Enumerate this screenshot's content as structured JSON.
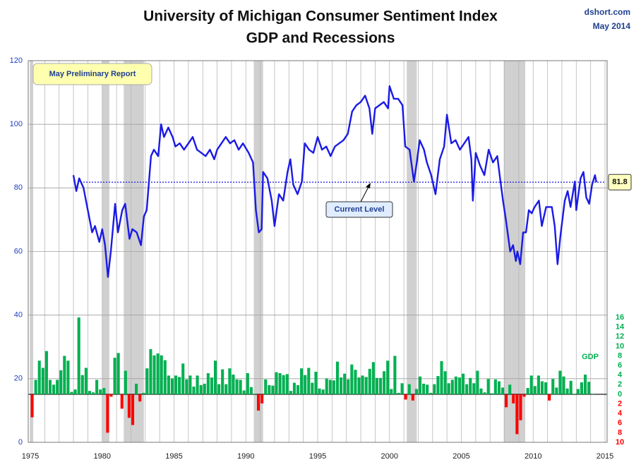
{
  "chart_data": [
    {
      "type": "line",
      "title": "University of Michigan Consumer Sentiment Index",
      "subtitle": "GDP and Recessions",
      "source": "dshort.com",
      "date": "May 2014",
      "report_label": "May Preliminary Report",
      "color": "#1a1ae6",
      "xlim": [
        1975,
        2015
      ],
      "xticks": [
        1975,
        1980,
        1985,
        1990,
        1995,
        2000,
        2005,
        2010,
        2015
      ],
      "xminorticks": [
        1976,
        1977,
        1978,
        1979,
        1981,
        1982,
        1983,
        1984,
        1986,
        1987,
        1988,
        1989,
        1991,
        1992,
        1993,
        1994,
        1996,
        1997,
        1998,
        1999,
        2001,
        2002,
        2003,
        2004,
        2006,
        2007,
        2008,
        2009,
        2011,
        2012,
        2013,
        2014
      ],
      "ylim": [
        0,
        120
      ],
      "yticks": [
        0,
        20,
        40,
        60,
        80,
        100,
        120
      ],
      "grid": true,
      "recessions": [
        [
          1975,
          1975.2
        ],
        [
          1980,
          1980.5
        ],
        [
          1981.5,
          1982.9
        ],
        [
          1990.55,
          1991.2
        ],
        [
          2001.2,
          2001.9
        ],
        [
          2007.95,
          2009.45
        ]
      ],
      "current_level": {
        "label": "Current Level",
        "value": 81.8
      },
      "x": [
        1978.0,
        1978.2,
        1978.4,
        1978.7,
        1979.0,
        1979.3,
        1979.5,
        1979.8,
        1980.0,
        1980.2,
        1980.4,
        1980.6,
        1980.9,
        1981.1,
        1981.4,
        1981.6,
        1981.9,
        1982.1,
        1982.4,
        1982.7,
        1982.9,
        1983.1,
        1983.4,
        1983.6,
        1983.9,
        1984.1,
        1984.3,
        1984.6,
        1984.9,
        1985.1,
        1985.4,
        1985.7,
        1986.0,
        1986.3,
        1986.6,
        1986.9,
        1987.2,
        1987.5,
        1987.8,
        1988.0,
        1988.3,
        1988.6,
        1988.9,
        1989.2,
        1989.5,
        1989.8,
        1990.2,
        1990.5,
        1990.7,
        1990.9,
        1991.1,
        1991.2,
        1991.5,
        1991.8,
        1992.0,
        1992.3,
        1992.6,
        1992.9,
        1993.1,
        1993.3,
        1993.6,
        1993.9,
        1994.1,
        1994.4,
        1994.7,
        1995.0,
        1995.3,
        1995.6,
        1995.9,
        1996.2,
        1996.5,
        1996.8,
        1997.1,
        1997.4,
        1997.7,
        1998.0,
        1998.3,
        1998.6,
        1998.8,
        1999.0,
        1999.3,
        1999.6,
        1999.9,
        2000.0,
        2000.3,
        2000.6,
        2000.9,
        2001.1,
        2001.4,
        2001.7,
        2001.9,
        2002.1,
        2002.4,
        2002.6,
        2002.9,
        2003.2,
        2003.5,
        2003.8,
        2004.0,
        2004.3,
        2004.6,
        2004.9,
        2005.2,
        2005.5,
        2005.7,
        2005.8,
        2006.0,
        2006.3,
        2006.6,
        2006.9,
        2007.2,
        2007.5,
        2007.7,
        2007.9,
        2008.1,
        2008.4,
        2008.6,
        2008.8,
        2008.9,
        2009.1,
        2009.3,
        2009.5,
        2009.7,
        2009.9,
        2010.1,
        2010.4,
        2010.6,
        2010.9,
        2011.1,
        2011.3,
        2011.5,
        2011.7,
        2011.9,
        2012.2,
        2012.4,
        2012.6,
        2012.9,
        2013.0,
        2013.3,
        2013.5,
        2013.7,
        2013.9,
        2014.1,
        2014.3,
        2014.4
      ],
      "values": [
        84,
        79,
        83,
        80,
        73,
        66,
        68,
        63,
        67,
        62,
        52,
        60,
        75,
        66,
        73,
        75,
        64,
        67,
        66,
        62,
        71,
        73,
        90,
        92,
        90,
        100,
        96,
        99,
        96,
        93,
        94,
        92,
        94,
        96,
        92,
        91,
        90,
        92,
        89,
        92,
        94,
        96,
        94,
        95,
        92,
        94,
        91,
        88,
        73,
        66,
        67,
        85,
        83,
        76,
        68,
        78,
        76,
        85,
        89,
        81,
        78,
        82,
        94,
        92,
        91,
        96,
        92,
        93,
        90,
        93,
        94,
        95,
        97,
        104,
        106,
        107,
        109,
        105,
        97,
        105,
        106,
        107,
        105,
        112,
        108,
        108,
        106,
        93,
        92,
        82,
        88,
        95,
        92,
        88,
        84,
        78,
        89,
        93,
        103,
        94,
        95,
        92,
        94,
        96,
        89,
        76,
        91,
        87,
        84,
        92,
        88,
        90,
        83,
        76,
        70,
        60,
        62,
        57,
        60,
        56,
        66,
        66,
        73,
        72,
        74,
        76,
        68,
        74,
        74,
        74,
        68,
        56,
        65,
        76,
        79,
        74,
        82,
        73,
        83,
        85,
        77,
        75,
        81,
        84,
        81.8
      ]
    },
    {
      "type": "bar",
      "name": "GDP",
      "color": "#00b050",
      "negative_color": "#ff0000",
      "y2lim": [
        -10,
        16
      ],
      "y2ticks": [
        16,
        14,
        12,
        10,
        8,
        6,
        4,
        2,
        0,
        {
          "value": -2,
          "label": "2"
        },
        {
          "value": -4,
          "label": "4"
        },
        {
          "value": -6,
          "label": "6"
        },
        {
          "value": -8,
          "label": "8"
        },
        {
          "value": -10,
          "label": "10"
        }
      ],
      "x": [
        1975,
        1975.25,
        1975.5,
        1975.75,
        1976,
        1976.25,
        1976.5,
        1976.75,
        1977,
        1977.25,
        1977.5,
        1977.75,
        1978,
        1978.25,
        1978.5,
        1978.75,
        1979,
        1979.25,
        1979.5,
        1979.75,
        1980,
        1980.25,
        1980.5,
        1980.75,
        1981,
        1981.25,
        1981.5,
        1981.75,
        1982,
        1982.25,
        1982.5,
        1982.75,
        1983,
        1983.25,
        1983.5,
        1983.75,
        1984,
        1984.25,
        1984.5,
        1984.75,
        1985,
        1985.25,
        1985.5,
        1985.75,
        1986,
        1986.25,
        1986.5,
        1986.75,
        1987,
        1987.25,
        1987.5,
        1987.75,
        1988,
        1988.25,
        1988.5,
        1988.75,
        1989,
        1989.25,
        1989.5,
        1989.75,
        1990,
        1990.25,
        1990.5,
        1990.75,
        1991,
        1991.25,
        1991.5,
        1991.75,
        1992,
        1992.25,
        1992.5,
        1992.75,
        1993,
        1993.25,
        1993.5,
        1993.75,
        1994,
        1994.25,
        1994.5,
        1994.75,
        1995,
        1995.25,
        1995.5,
        1995.75,
        1996,
        1996.25,
        1996.5,
        1996.75,
        1997,
        1997.25,
        1997.5,
        1997.75,
        1998,
        1998.25,
        1998.5,
        1998.75,
        1999,
        1999.25,
        1999.5,
        1999.75,
        2000,
        2000.25,
        2000.5,
        2000.75,
        2001,
        2001.25,
        2001.5,
        2001.75,
        2002,
        2002.25,
        2002.5,
        2002.75,
        2003,
        2003.25,
        2003.5,
        2003.75,
        2004,
        2004.25,
        2004.5,
        2004.75,
        2005,
        2005.25,
        2005.5,
        2005.75,
        2006,
        2006.25,
        2006.5,
        2006.75,
        2007,
        2007.25,
        2007.5,
        2007.75,
        2008,
        2008.25,
        2008.5,
        2008.75,
        2009,
        2009.25,
        2009.5,
        2009.75,
        2010,
        2010.25,
        2010.5,
        2010.75,
        2011,
        2011.25,
        2011.5,
        2011.75,
        2012,
        2012.25,
        2012.5,
        2012.75,
        2013,
        2013.25,
        2013.5,
        2013.75,
        2014
      ],
      "values": [
        -4.8,
        3,
        7,
        5.5,
        9,
        3,
        2,
        3,
        5,
        8,
        7,
        0.5,
        1,
        16,
        4,
        5.5,
        0.7,
        0.4,
        3,
        1,
        1.3,
        -8,
        -0.5,
        7.6,
        8.6,
        -3,
        4.9,
        -4.9,
        -6.4,
        2.2,
        -1.5,
        0.3,
        5.4,
        9.4,
        8.1,
        8.5,
        8.1,
        7.1,
        3.9,
        3.3,
        3.9,
        3.6,
        6.4,
        3.1,
        3.9,
        1.6,
        3.9,
        1.9,
        2.2,
        4.4,
        3.5,
        7,
        2.1,
        5.2,
        2.1,
        5.4,
        4.1,
        3.1,
        3,
        0.8,
        4.4,
        1.5,
        0.1,
        -3.4,
        -1.9,
        3.1,
        1.9,
        1.8,
        4.6,
        4.4,
        4,
        4.2,
        0.7,
        2.4,
        1.9,
        5.4,
        4,
        5.5,
        2.4,
        4.7,
        1.2,
        1,
        3.3,
        3,
        2.9,
        6.8,
        3.5,
        4.3,
        3.1,
        6.2,
        5.1,
        3.5,
        3.9,
        3.6,
        5.3,
        6.7,
        3.4,
        3.4,
        4.8,
        7,
        1.1,
        8,
        0.3,
        2.3,
        -1.1,
        2.1,
        -1.3,
        1.1,
        3.7,
        2.2,
        2,
        0.3,
        2.1,
        3.8,
        6.9,
        4.8,
        2.3,
        3,
        3.7,
        3.5,
        4.3,
        2.1,
        3.4,
        2.3,
        4.9,
        1.2,
        0.4,
        3.2,
        0.2,
        3.1,
        2.7,
        1.4,
        -2.7,
        2,
        -1.9,
        -8.3,
        -5.4,
        -0.5,
        1.3,
        3.9,
        1.7,
        3.9,
        2.7,
        2.5,
        -1.3,
        3.2,
        1.4,
        4.9,
        3.7,
        1.2,
        2.8,
        0.1,
        1.1,
        2.5,
        4.1,
        2.6,
        0.1
      ]
    }
  ]
}
